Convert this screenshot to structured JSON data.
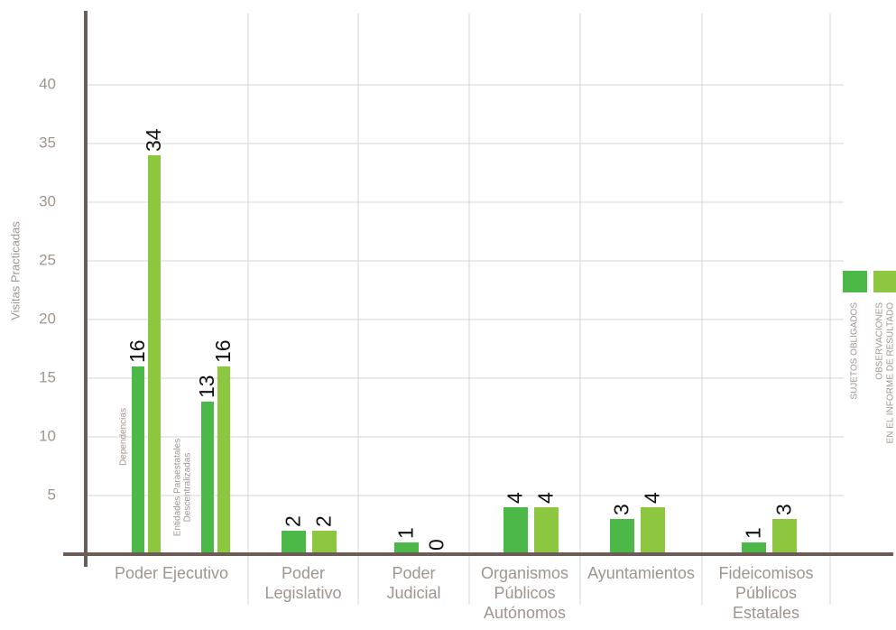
{
  "chart_data": {
    "type": "bar",
    "ylabel": "Visitas Practicadas",
    "ylim": [
      0,
      46
    ],
    "yticks": [
      5,
      10,
      15,
      20,
      25,
      30,
      35,
      40
    ],
    "grid": true,
    "categories": [
      [
        "Poder Ejecutivo"
      ],
      null,
      [
        "Poder",
        "Legislativo"
      ],
      [
        "Poder",
        "Judicial"
      ],
      [
        "Organismos",
        "Públicos",
        "Autónomos"
      ],
      [
        "Ayuntamientos"
      ],
      [
        "Fideicomisos",
        "Públicos",
        "Estatales"
      ]
    ],
    "subcategories": [
      [
        "Dependencias"
      ],
      [
        "Entidades Paraestatales",
        "Descentralizadas"
      ],
      null,
      null,
      null,
      null,
      null
    ],
    "series": [
      {
        "name": [
          "SUJETOS OBLIGADOS"
        ],
        "color": "#4cb848",
        "values": [
          16,
          13,
          2,
          1,
          4,
          3,
          1
        ]
      },
      {
        "name": [
          "OBSERVACIONES",
          "EN EL INFORME DE RESULTADO"
        ],
        "color": "#8dc63f",
        "values": [
          34,
          16,
          2,
          0,
          4,
          4,
          3
        ]
      }
    ]
  }
}
